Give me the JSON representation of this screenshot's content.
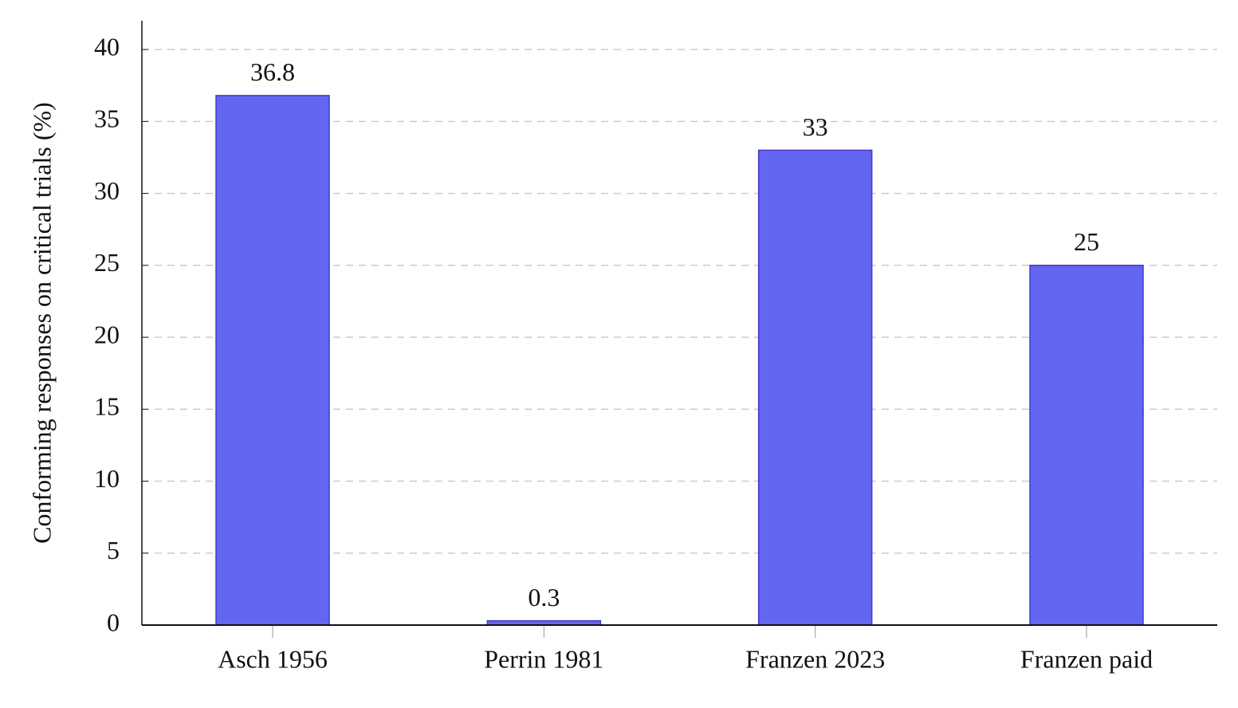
{
  "chart_data": {
    "type": "bar",
    "y_label": "Conforming responses on critical trials (%)",
    "categories": [
      "Asch 1956",
      "Perrin 1981",
      "Franzen 2023",
      "Franzen paid"
    ],
    "values": [
      36.8,
      0.3,
      33,
      25
    ],
    "color": "#6366f1",
    "ylim": [
      0,
      42
    ],
    "yticks": [
      0,
      5,
      10,
      15,
      20,
      25,
      30,
      35,
      40
    ],
    "grid": true
  }
}
